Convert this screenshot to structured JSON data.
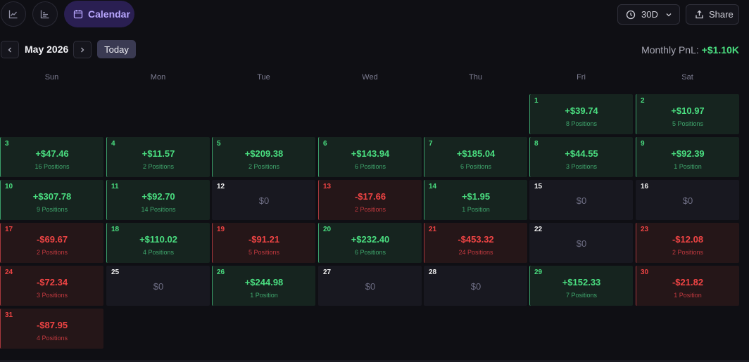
{
  "header": {
    "calendar_tab_label": "Calendar",
    "range_label": "30D",
    "share_label": "Share"
  },
  "nav": {
    "month_label": "May 2026",
    "today_label": "Today",
    "monthly_pnl_label": "Monthly PnL:",
    "monthly_pnl_value": "+$1.10K"
  },
  "weekdays": [
    "Sun",
    "Mon",
    "Tue",
    "Wed",
    "Thu",
    "Fri",
    "Sat"
  ],
  "days": [
    {
      "day": "1",
      "amount": "+$39.74",
      "positions": "8 Positions",
      "status": "pos"
    },
    {
      "day": "2",
      "amount": "+$10.97",
      "positions": "5 Positions",
      "status": "pos"
    },
    {
      "day": "3",
      "amount": "+$47.46",
      "positions": "16 Positions",
      "status": "pos"
    },
    {
      "day": "4",
      "amount": "+$11.57",
      "positions": "2 Positions",
      "status": "pos"
    },
    {
      "day": "5",
      "amount": "+$209.38",
      "positions": "2 Positions",
      "status": "pos"
    },
    {
      "day": "6",
      "amount": "+$143.94",
      "positions": "6 Positions",
      "status": "pos"
    },
    {
      "day": "7",
      "amount": "+$185.04",
      "positions": "6 Positions",
      "status": "pos"
    },
    {
      "day": "8",
      "amount": "+$44.55",
      "positions": "3 Positions",
      "status": "pos"
    },
    {
      "day": "9",
      "amount": "+$92.39",
      "positions": "1 Position",
      "status": "pos"
    },
    {
      "day": "10",
      "amount": "+$307.78",
      "positions": "9 Positions",
      "status": "pos"
    },
    {
      "day": "11",
      "amount": "+$92.70",
      "positions": "14 Positions",
      "status": "pos"
    },
    {
      "day": "12",
      "amount": "$0",
      "positions": "",
      "status": "zero"
    },
    {
      "day": "13",
      "amount": "-$17.66",
      "positions": "2 Positions",
      "status": "neg"
    },
    {
      "day": "14",
      "amount": "+$1.95",
      "positions": "1 Position",
      "status": "pos"
    },
    {
      "day": "15",
      "amount": "$0",
      "positions": "",
      "status": "zero"
    },
    {
      "day": "16",
      "amount": "$0",
      "positions": "",
      "status": "zero"
    },
    {
      "day": "17",
      "amount": "-$69.67",
      "positions": "2 Positions",
      "status": "neg"
    },
    {
      "day": "18",
      "amount": "+$110.02",
      "positions": "4 Positions",
      "status": "pos"
    },
    {
      "day": "19",
      "amount": "-$91.21",
      "positions": "5 Positions",
      "status": "neg"
    },
    {
      "day": "20",
      "amount": "+$232.40",
      "positions": "6 Positions",
      "status": "pos"
    },
    {
      "day": "21",
      "amount": "-$453.32",
      "positions": "24 Positions",
      "status": "neg"
    },
    {
      "day": "22",
      "amount": "$0",
      "positions": "",
      "status": "zero"
    },
    {
      "day": "23",
      "amount": "-$12.08",
      "positions": "2 Positions",
      "status": "neg"
    },
    {
      "day": "24",
      "amount": "-$72.34",
      "positions": "3 Positions",
      "status": "neg"
    },
    {
      "day": "25",
      "amount": "$0",
      "positions": "",
      "status": "zero"
    },
    {
      "day": "26",
      "amount": "+$244.98",
      "positions": "1 Position",
      "status": "pos"
    },
    {
      "day": "27",
      "amount": "$0",
      "positions": "",
      "status": "zero"
    },
    {
      "day": "28",
      "amount": "$0",
      "positions": "",
      "status": "zero"
    },
    {
      "day": "29",
      "amount": "+$152.33",
      "positions": "7 Positions",
      "status": "pos"
    },
    {
      "day": "30",
      "amount": "-$21.82",
      "positions": "1 Position",
      "status": "neg"
    },
    {
      "day": "31",
      "amount": "-$87.95",
      "positions": "4 Positions",
      "status": "neg"
    }
  ],
  "colors": {
    "positive": "#4ade80",
    "negative": "#ef4444",
    "accent": "#b9a7ff"
  }
}
